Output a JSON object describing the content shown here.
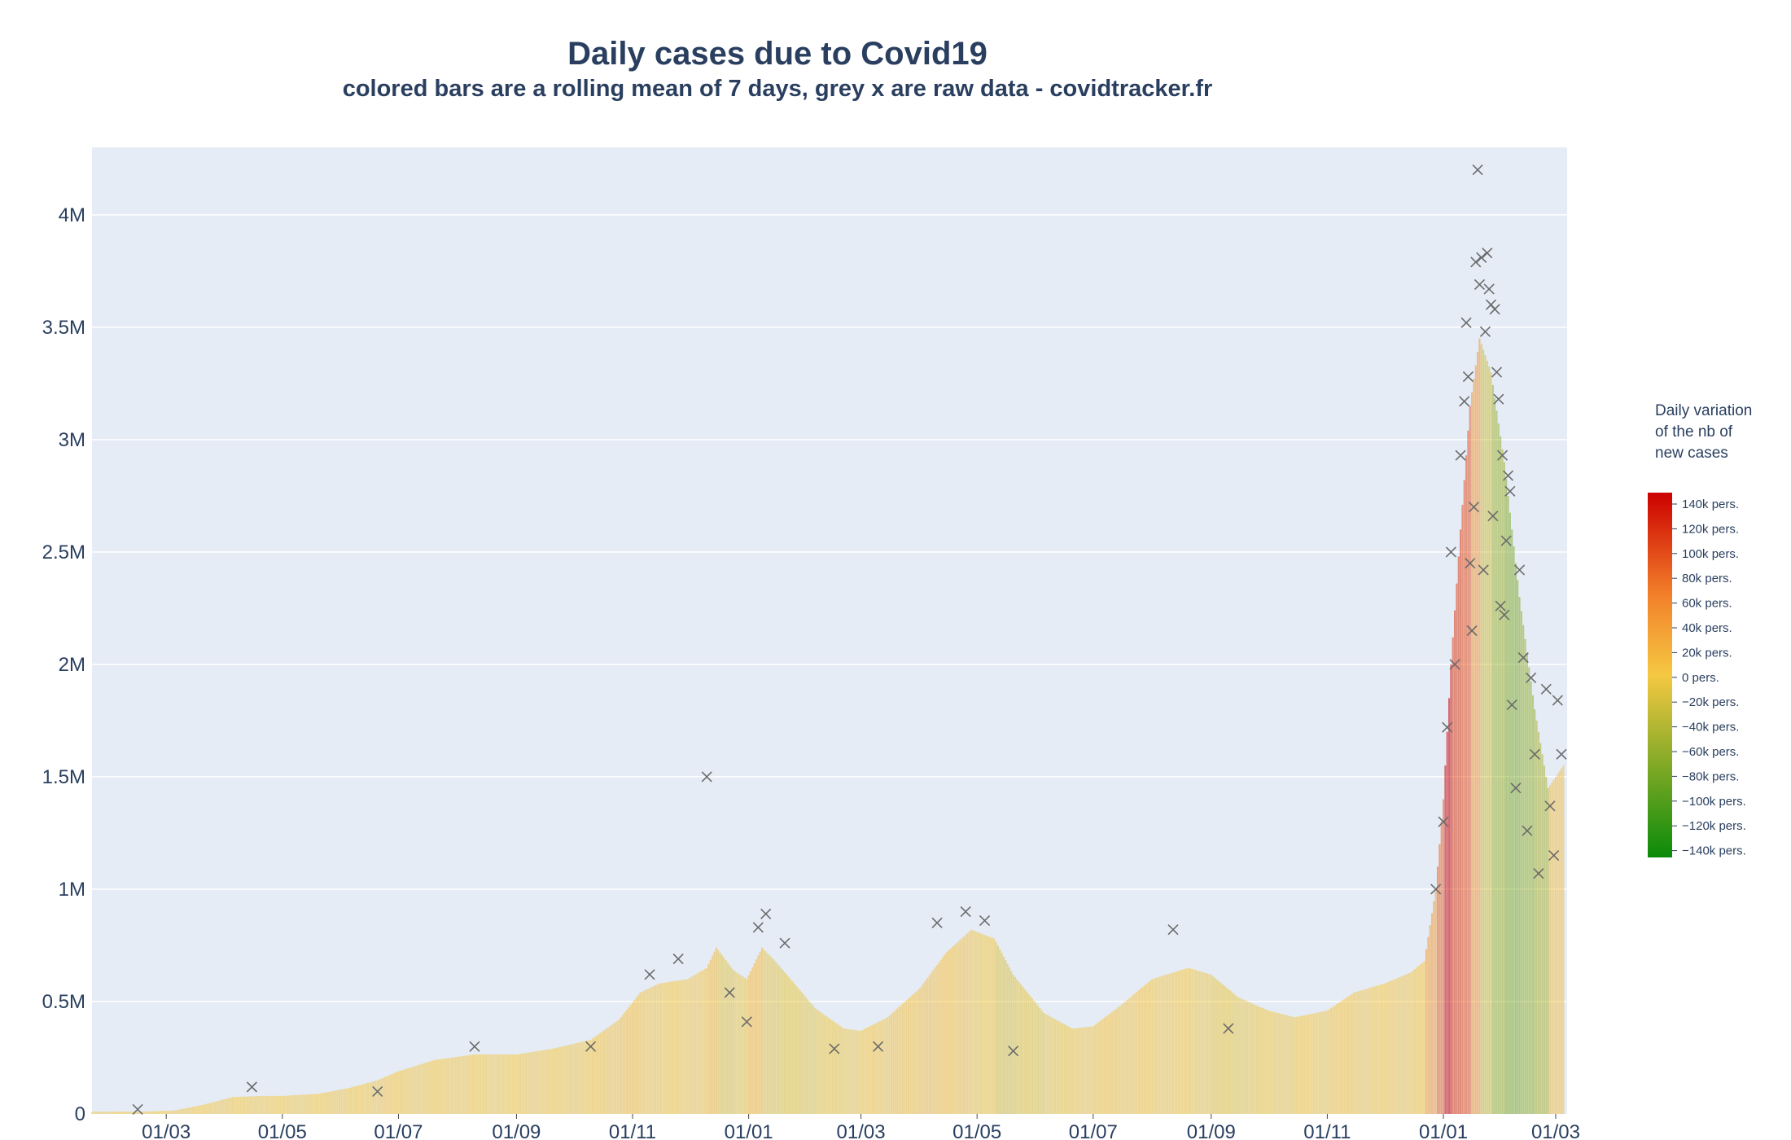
{
  "title": "Daily cases due to Covid19",
  "subtitle": "colored bars are a rolling mean of 7 days, grey x are raw data - covidtracker.fr",
  "colors": {
    "plot_bg": "#e5ecf6",
    "gridline": "#ffffff",
    "text": "#2a3f5f",
    "raw_marker": "#6b6b6b",
    "scale_red": "#cc0000",
    "scale_orange": "#f2802a",
    "scale_yellow": "#f5c842",
    "scale_green": "#0a8a0a"
  },
  "colorbar": {
    "title_lines": [
      "Daily variation",
      "of the nb of",
      "new cases"
    ],
    "labels": [
      "140k pers.",
      "120k pers.",
      "100k pers.",
      "80k pers.",
      "60k pers.",
      "40k pers.",
      "20k pers.",
      "0 pers.",
      "−20k pers.",
      "−40k pers.",
      "−60k pers.",
      "−80k pers.",
      "−100k pers.",
      "−120k pers.",
      "−140k pers."
    ],
    "range": [
      -150000,
      150000
    ]
  },
  "chart_data": {
    "type": "bar",
    "title": "Daily cases due to Covid19",
    "subtitle": "colored bars are a rolling mean of 7 days, grey x are raw data - covidtracker.fr",
    "xlabel": "",
    "ylabel": "",
    "x_range": [
      "2020-01-22",
      "2022-03-07"
    ],
    "ylim": [
      0,
      4300000
    ],
    "grid": true,
    "legend": "none (colorbar at right)",
    "y_ticks": [
      {
        "value": 0,
        "label": "0"
      },
      {
        "value": 500000,
        "label": "0.5M"
      },
      {
        "value": 1000000,
        "label": "1M"
      },
      {
        "value": 1500000,
        "label": "1.5M"
      },
      {
        "value": 2000000,
        "label": "2M"
      },
      {
        "value": 2500000,
        "label": "2.5M"
      },
      {
        "value": 3000000,
        "label": "3M"
      },
      {
        "value": 3500000,
        "label": "3.5M"
      },
      {
        "value": 4000000,
        "label": "4M"
      }
    ],
    "x_ticks": [
      {
        "date": "2020-03-01",
        "label": "01/03"
      },
      {
        "date": "2020-05-01",
        "label": "01/05"
      },
      {
        "date": "2020-07-01",
        "label": "01/07"
      },
      {
        "date": "2020-09-01",
        "label": "01/09"
      },
      {
        "date": "2020-11-01",
        "label": "01/11"
      },
      {
        "date": "2021-01-01",
        "label": "01/01"
      },
      {
        "date": "2021-03-01",
        "label": "01/03"
      },
      {
        "date": "2021-05-01",
        "label": "01/05"
      },
      {
        "date": "2021-07-01",
        "label": "01/07"
      },
      {
        "date": "2021-09-01",
        "label": "01/09"
      },
      {
        "date": "2021-11-01",
        "label": "01/11"
      },
      {
        "date": "2022-01-01",
        "label": "01/01"
      },
      {
        "date": "2022-03-01",
        "label": "01/03"
      }
    ],
    "series": [
      {
        "kind": "rolling mean 7 days (colored bars)",
        "points": [
          {
            "x": "2020-01-22",
            "y": 10000
          },
          {
            "x": "2020-02-15",
            "y": 10000
          },
          {
            "x": "2020-03-05",
            "y": 15000
          },
          {
            "x": "2020-03-20",
            "y": 40000
          },
          {
            "x": "2020-04-05",
            "y": 75000
          },
          {
            "x": "2020-04-20",
            "y": 80000
          },
          {
            "x": "2020-05-01",
            "y": 80000
          },
          {
            "x": "2020-05-20",
            "y": 90000
          },
          {
            "x": "2020-06-05",
            "y": 115000
          },
          {
            "x": "2020-06-20",
            "y": 150000
          },
          {
            "x": "2020-07-01",
            "y": 190000
          },
          {
            "x": "2020-07-20",
            "y": 240000
          },
          {
            "x": "2020-08-10",
            "y": 265000
          },
          {
            "x": "2020-09-01",
            "y": 265000
          },
          {
            "x": "2020-09-20",
            "y": 290000
          },
          {
            "x": "2020-10-10",
            "y": 330000
          },
          {
            "x": "2020-10-25",
            "y": 420000
          },
          {
            "x": "2020-11-05",
            "y": 540000
          },
          {
            "x": "2020-11-15",
            "y": 580000
          },
          {
            "x": "2020-11-30",
            "y": 600000
          },
          {
            "x": "2020-12-10",
            "y": 650000
          },
          {
            "x": "2020-12-15",
            "y": 740000
          },
          {
            "x": "2020-12-24",
            "y": 640000
          },
          {
            "x": "2020-12-31",
            "y": 600000
          },
          {
            "x": "2021-01-08",
            "y": 740000
          },
          {
            "x": "2021-01-15",
            "y": 680000
          },
          {
            "x": "2021-01-25",
            "y": 580000
          },
          {
            "x": "2021-02-05",
            "y": 470000
          },
          {
            "x": "2021-02-20",
            "y": 380000
          },
          {
            "x": "2021-03-01",
            "y": 370000
          },
          {
            "x": "2021-03-15",
            "y": 430000
          },
          {
            "x": "2021-04-01",
            "y": 560000
          },
          {
            "x": "2021-04-15",
            "y": 720000
          },
          {
            "x": "2021-04-28",
            "y": 820000
          },
          {
            "x": "2021-05-10",
            "y": 780000
          },
          {
            "x": "2021-05-20",
            "y": 620000
          },
          {
            "x": "2021-06-05",
            "y": 450000
          },
          {
            "x": "2021-06-20",
            "y": 380000
          },
          {
            "x": "2021-07-01",
            "y": 390000
          },
          {
            "x": "2021-07-15",
            "y": 480000
          },
          {
            "x": "2021-08-01",
            "y": 600000
          },
          {
            "x": "2021-08-20",
            "y": 650000
          },
          {
            "x": "2021-09-01",
            "y": 620000
          },
          {
            "x": "2021-09-15",
            "y": 520000
          },
          {
            "x": "2021-10-01",
            "y": 460000
          },
          {
            "x": "2021-10-15",
            "y": 430000
          },
          {
            "x": "2021-11-01",
            "y": 460000
          },
          {
            "x": "2021-11-15",
            "y": 540000
          },
          {
            "x": "2021-12-01",
            "y": 580000
          },
          {
            "x": "2021-12-15",
            "y": 630000
          },
          {
            "x": "2021-12-22",
            "y": 680000
          },
          {
            "x": "2021-12-28",
            "y": 1000000
          },
          {
            "x": "2022-01-01",
            "y": 1400000
          },
          {
            "x": "2022-01-05",
            "y": 2000000
          },
          {
            "x": "2022-01-10",
            "y": 2600000
          },
          {
            "x": "2022-01-15",
            "y": 3150000
          },
          {
            "x": "2022-01-20",
            "y": 3450000
          },
          {
            "x": "2022-01-26",
            "y": 3300000
          },
          {
            "x": "2022-02-02",
            "y": 2900000
          },
          {
            "x": "2022-02-10",
            "y": 2300000
          },
          {
            "x": "2022-02-18",
            "y": 1800000
          },
          {
            "x": "2022-02-25",
            "y": 1450000
          },
          {
            "x": "2022-03-05",
            "y": 1550000
          }
        ]
      },
      {
        "kind": "raw data (grey x markers)",
        "points": [
          {
            "x": "2020-02-15",
            "y": 20000
          },
          {
            "x": "2020-04-15",
            "y": 120000
          },
          {
            "x": "2020-06-20",
            "y": 100000
          },
          {
            "x": "2020-08-10",
            "y": 300000
          },
          {
            "x": "2020-10-10",
            "y": 300000
          },
          {
            "x": "2020-11-10",
            "y": 620000
          },
          {
            "x": "2020-11-25",
            "y": 690000
          },
          {
            "x": "2020-12-10",
            "y": 1500000
          },
          {
            "x": "2020-12-22",
            "y": 540000
          },
          {
            "x": "2020-12-31",
            "y": 410000
          },
          {
            "x": "2021-01-06",
            "y": 830000
          },
          {
            "x": "2021-01-10",
            "y": 890000
          },
          {
            "x": "2021-01-20",
            "y": 760000
          },
          {
            "x": "2021-02-15",
            "y": 290000
          },
          {
            "x": "2021-03-10",
            "y": 300000
          },
          {
            "x": "2021-04-10",
            "y": 850000
          },
          {
            "x": "2021-04-25",
            "y": 900000
          },
          {
            "x": "2021-05-05",
            "y": 860000
          },
          {
            "x": "2021-05-20",
            "y": 280000
          },
          {
            "x": "2021-08-12",
            "y": 820000
          },
          {
            "x": "2021-09-10",
            "y": 380000
          },
          {
            "x": "2021-12-28",
            "y": 1000000
          },
          {
            "x": "2022-01-01",
            "y": 1300000
          },
          {
            "x": "2022-01-03",
            "y": 1720000
          },
          {
            "x": "2022-01-05",
            "y": 2500000
          },
          {
            "x": "2022-01-07",
            "y": 2000000
          },
          {
            "x": "2022-01-10",
            "y": 2930000
          },
          {
            "x": "2022-01-12",
            "y": 3170000
          },
          {
            "x": "2022-01-13",
            "y": 3520000
          },
          {
            "x": "2022-01-14",
            "y": 3280000
          },
          {
            "x": "2022-01-15",
            "y": 2450000
          },
          {
            "x": "2022-01-16",
            "y": 2150000
          },
          {
            "x": "2022-01-17",
            "y": 2700000
          },
          {
            "x": "2022-01-18",
            "y": 3790000
          },
          {
            "x": "2022-01-19",
            "y": 4200000
          },
          {
            "x": "2022-01-20",
            "y": 3690000
          },
          {
            "x": "2022-01-21",
            "y": 3810000
          },
          {
            "x": "2022-01-22",
            "y": 2420000
          },
          {
            "x": "2022-01-23",
            "y": 3480000
          },
          {
            "x": "2022-01-24",
            "y": 3830000
          },
          {
            "x": "2022-01-25",
            "y": 3670000
          },
          {
            "x": "2022-01-26",
            "y": 3600000
          },
          {
            "x": "2022-01-27",
            "y": 2660000
          },
          {
            "x": "2022-01-28",
            "y": 3580000
          },
          {
            "x": "2022-01-29",
            "y": 3300000
          },
          {
            "x": "2022-01-30",
            "y": 3180000
          },
          {
            "x": "2022-01-31",
            "y": 2260000
          },
          {
            "x": "2022-02-01",
            "y": 2930000
          },
          {
            "x": "2022-02-02",
            "y": 2220000
          },
          {
            "x": "2022-02-03",
            "y": 2550000
          },
          {
            "x": "2022-02-04",
            "y": 2840000
          },
          {
            "x": "2022-02-05",
            "y": 2770000
          },
          {
            "x": "2022-02-06",
            "y": 1820000
          },
          {
            "x": "2022-02-08",
            "y": 1450000
          },
          {
            "x": "2022-02-10",
            "y": 2420000
          },
          {
            "x": "2022-02-12",
            "y": 2030000
          },
          {
            "x": "2022-02-14",
            "y": 1260000
          },
          {
            "x": "2022-02-16",
            "y": 1940000
          },
          {
            "x": "2022-02-18",
            "y": 1600000
          },
          {
            "x": "2022-02-20",
            "y": 1070000
          },
          {
            "x": "2022-02-24",
            "y": 1890000
          },
          {
            "x": "2022-02-26",
            "y": 1370000
          },
          {
            "x": "2022-02-28",
            "y": 1150000
          },
          {
            "x": "2022-03-02",
            "y": 1840000
          },
          {
            "x": "2022-03-04",
            "y": 1600000
          }
        ]
      }
    ]
  }
}
